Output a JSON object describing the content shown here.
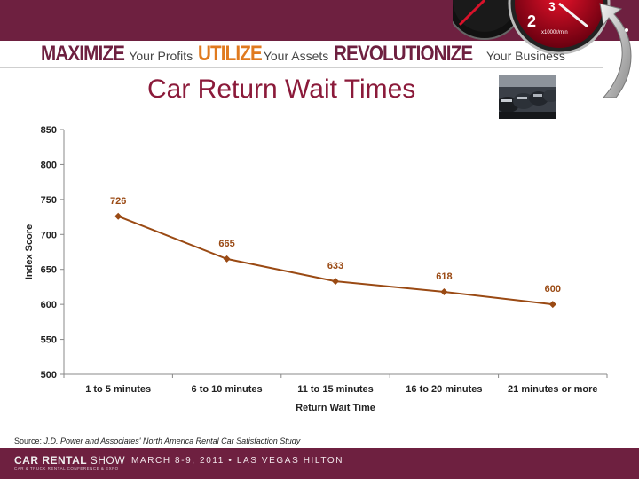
{
  "header": {
    "tagline": {
      "word1": "MAXIMIZE",
      "phrase1": "Your Profits",
      "word2": "UTILIZE",
      "phrase2": "Your Assets",
      "word3": "REVOLUTIONIZE",
      "phrase3": "Your Business"
    },
    "speedometer_icon": "speedometer-icon",
    "gauge_labels": [
      "2",
      "3",
      "x1000r/min"
    ]
  },
  "title": "Car Return Wait Times",
  "photo_icon": "parked-cars-photo",
  "chart_data": {
    "type": "line",
    "title": "Car Return Wait Times",
    "xlabel": "Return Wait Time",
    "ylabel": "Index Score",
    "categories": [
      "1 to 5 minutes",
      "6 to 10 minutes",
      "11 to 15 minutes",
      "16 to 20 minutes",
      "21 minutes or more"
    ],
    "values": [
      726,
      665,
      633,
      618,
      600
    ],
    "data_labels": [
      "726",
      "665",
      "633",
      "618",
      "600"
    ],
    "ylim": [
      500,
      850
    ],
    "yticks": [
      500,
      550,
      600,
      650,
      700,
      750,
      800,
      850
    ],
    "ytick_labels": [
      "500",
      "550",
      "600",
      "650",
      "700",
      "750",
      "800",
      "850"
    ],
    "grid": false,
    "legend": "none",
    "colors": {
      "line": "#9a4a14",
      "label": "#9a4a14",
      "axis": "#888888"
    }
  },
  "footer": {
    "source_prefix": "Source:",
    "source_text": "J.D. Power and Associates' North America Rental Car Satisfaction Study",
    "logo_line1a": "CAR RENTAL",
    "logo_line1b": "SHOW",
    "logo_line2": "CAR & TRUCK RENTAL CONFERENCE & EXPO",
    "event": "MARCH 8-9, 2011 • LAS VEGAS HILTON"
  },
  "colors": {
    "band": "#6e2040",
    "title": "#8b1a3a",
    "accent_orange": "#e07a1f"
  }
}
